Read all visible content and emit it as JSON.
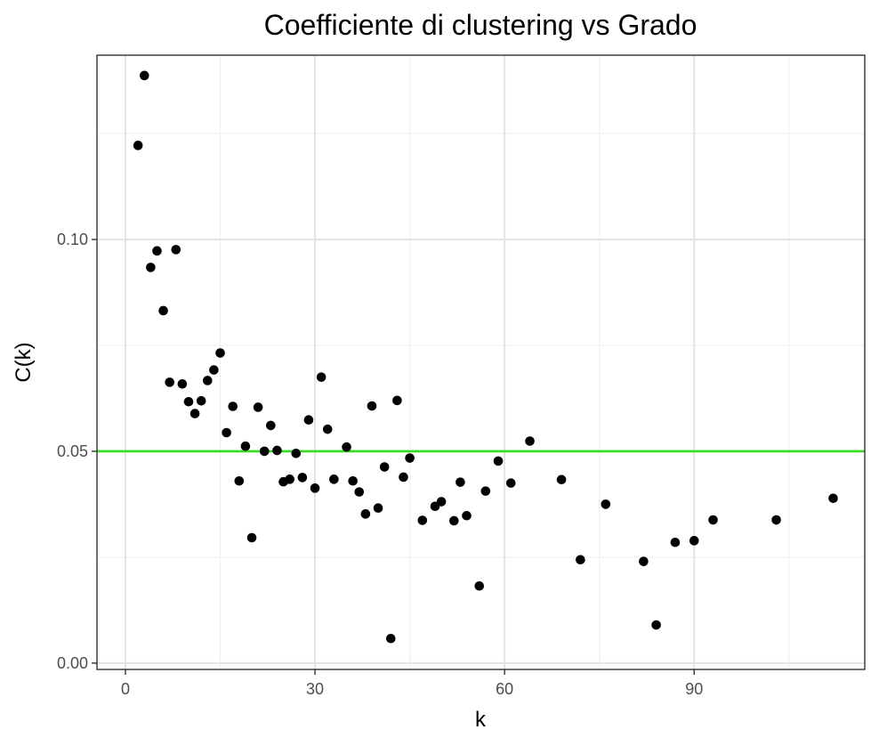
{
  "chart_data": {
    "type": "scatter",
    "title": "Coefficiente di clustering vs Grado",
    "xlabel": "k",
    "ylabel": "C(k)",
    "xlim": [
      -4.5,
      117
    ],
    "ylim": [
      -0.0015,
      0.1435
    ],
    "x_ticks": [
      0,
      30,
      60,
      90
    ],
    "x_tick_labels": [
      "0",
      "30",
      "60",
      "90"
    ],
    "x_minor_ticks": [
      15,
      45,
      75,
      105
    ],
    "y_ticks": [
      0.0,
      0.05,
      0.1
    ],
    "y_tick_labels": [
      "0.00",
      "0.05",
      "0.10"
    ],
    "y_minor_ticks": [
      0.025,
      0.075,
      0.125
    ],
    "grid": true,
    "legend": "none",
    "point_color": "#000000",
    "reference_line": {
      "axis": "y",
      "value": 0.05,
      "color": "#33dd22"
    },
    "points": [
      [
        2,
        0.1222
      ],
      [
        3,
        0.1387
      ],
      [
        4,
        0.0934
      ],
      [
        5,
        0.0973
      ],
      [
        6,
        0.0832
      ],
      [
        7,
        0.0663
      ],
      [
        8,
        0.0976
      ],
      [
        9,
        0.0659
      ],
      [
        10,
        0.0617
      ],
      [
        11,
        0.0589
      ],
      [
        12,
        0.0619
      ],
      [
        13,
        0.0667
      ],
      [
        14,
        0.0692
      ],
      [
        15,
        0.0732
      ],
      [
        16,
        0.0544
      ],
      [
        17,
        0.0606
      ],
      [
        18,
        0.043
      ],
      [
        19,
        0.0512
      ],
      [
        20,
        0.0296
      ],
      [
        21,
        0.0604
      ],
      [
        22,
        0.05
      ],
      [
        23,
        0.0561
      ],
      [
        24,
        0.0502
      ],
      [
        25,
        0.0428
      ],
      [
        26,
        0.0434
      ],
      [
        27,
        0.0495
      ],
      [
        28,
        0.0438
      ],
      [
        29,
        0.0574
      ],
      [
        30,
        0.0413
      ],
      [
        31,
        0.0675
      ],
      [
        32,
        0.0552
      ],
      [
        33,
        0.0434
      ],
      [
        35,
        0.051
      ],
      [
        36,
        0.043
      ],
      [
        37,
        0.0404
      ],
      [
        38,
        0.0352
      ],
      [
        39,
        0.0607
      ],
      [
        40,
        0.0366
      ],
      [
        41,
        0.0463
      ],
      [
        42,
        0.0058
      ],
      [
        43,
        0.062
      ],
      [
        44,
        0.0439
      ],
      [
        45,
        0.0484
      ],
      [
        47,
        0.0337
      ],
      [
        49,
        0.037
      ],
      [
        50,
        0.0381
      ],
      [
        52,
        0.0336
      ],
      [
        53,
        0.0427
      ],
      [
        54,
        0.0348
      ],
      [
        56,
        0.0182
      ],
      [
        57,
        0.0406
      ],
      [
        59,
        0.0477
      ],
      [
        61,
        0.0425
      ],
      [
        64,
        0.0524
      ],
      [
        69,
        0.0433
      ],
      [
        72,
        0.0244
      ],
      [
        76,
        0.0375
      ],
      [
        82,
        0.024
      ],
      [
        84,
        0.009
      ],
      [
        87,
        0.0285
      ],
      [
        90,
        0.0289
      ],
      [
        93,
        0.0338
      ],
      [
        103,
        0.0338
      ],
      [
        112,
        0.0389
      ]
    ]
  }
}
